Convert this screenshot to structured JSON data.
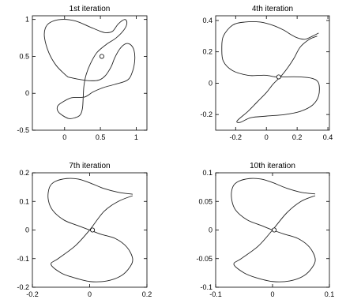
{
  "chart_data": [
    {
      "type": "line",
      "title": "1st iteration",
      "xlabel": "",
      "ylabel": "",
      "xlim": [
        -0.45,
        1.15
      ],
      "ylim": [
        -0.5,
        1.05
      ],
      "xticks": [
        "0",
        "0.5",
        "1"
      ],
      "xtick_values": [
        0,
        0.5,
        1
      ],
      "yticks": [
        "-0.5",
        "0",
        "0.5",
        "1"
      ],
      "ytick_values": [
        -0.5,
        0,
        0.5,
        1
      ],
      "grid": false,
      "series": [
        {
          "points": [
            [
              0.05,
              0.22
            ],
            [
              0.0,
              0.26
            ],
            [
              -0.12,
              0.38
            ],
            [
              -0.22,
              0.55
            ],
            [
              -0.28,
              0.75
            ],
            [
              -0.27,
              0.88
            ],
            [
              -0.2,
              0.96
            ],
            [
              -0.05,
              1.0
            ],
            [
              0.15,
              0.98
            ],
            [
              0.35,
              0.9
            ],
            [
              0.5,
              0.84
            ],
            [
              0.58,
              0.82
            ],
            [
              0.67,
              0.84
            ],
            [
              0.75,
              0.94
            ],
            [
              0.84,
              1.0
            ],
            [
              0.87,
              0.95
            ],
            [
              0.83,
              0.86
            ],
            [
              0.72,
              0.75
            ],
            [
              0.58,
              0.66
            ],
            [
              0.45,
              0.55
            ],
            [
              0.36,
              0.4
            ],
            [
              0.3,
              0.25
            ],
            [
              0.27,
              0.1
            ],
            [
              0.26,
              -0.05
            ],
            [
              0.25,
              -0.2
            ],
            [
              0.22,
              -0.29
            ],
            [
              0.15,
              -0.33
            ],
            [
              0.05,
              -0.34
            ],
            [
              -0.08,
              -0.26
            ],
            [
              -0.1,
              -0.18
            ],
            [
              -0.03,
              -0.12
            ],
            [
              0.1,
              -0.06
            ],
            [
              0.28,
              -0.05
            ],
            [
              0.4,
              0.02
            ],
            [
              0.55,
              0.08
            ],
            [
              0.7,
              0.12
            ],
            [
              0.88,
              0.18
            ],
            [
              0.95,
              0.3
            ],
            [
              0.98,
              0.45
            ],
            [
              0.97,
              0.58
            ],
            [
              0.92,
              0.66
            ],
            [
              0.85,
              0.67
            ],
            [
              0.77,
              0.6
            ],
            [
              0.7,
              0.48
            ],
            [
              0.65,
              0.36
            ],
            [
              0.57,
              0.24
            ],
            [
              0.48,
              0.18
            ],
            [
              0.35,
              0.17
            ],
            [
              0.2,
              0.19
            ],
            [
              0.05,
              0.22
            ]
          ]
        }
      ],
      "marker": [
        0.52,
        0.5
      ]
    },
    {
      "type": "line",
      "title": "4th iteration",
      "xlabel": "",
      "ylabel": "",
      "xlim": [
        -0.33,
        0.41
      ],
      "ylim": [
        -0.3,
        0.43
      ],
      "xticks": [
        "-0.2",
        "0",
        "0.2",
        "0.4"
      ],
      "xtick_values": [
        -0.2,
        0,
        0.2,
        0.4
      ],
      "yticks": [
        "-0.2",
        "0",
        "0.2",
        "0.4"
      ],
      "ytick_values": [
        -0.2,
        0,
        0.2,
        0.4
      ],
      "grid": false,
      "series": [
        {
          "points": [
            [
              0.33,
              0.3
            ],
            [
              0.28,
              0.28
            ],
            [
              0.22,
              0.23
            ],
            [
              0.18,
              0.16
            ],
            [
              0.14,
              0.1
            ],
            [
              0.1,
              0.05
            ],
            [
              0.07,
              0.02
            ],
            [
              0.04,
              -0.01
            ],
            [
              0.0,
              -0.06
            ],
            [
              -0.06,
              -0.12
            ],
            [
              -0.12,
              -0.18
            ],
            [
              -0.19,
              -0.24
            ],
            [
              -0.17,
              -0.25
            ],
            [
              -0.1,
              -0.22
            ],
            [
              0.0,
              -0.21
            ],
            [
              0.12,
              -0.2
            ],
            [
              0.22,
              -0.18
            ],
            [
              0.3,
              -0.14
            ],
            [
              0.34,
              -0.08
            ],
            [
              0.34,
              0.0
            ],
            [
              0.3,
              0.03
            ],
            [
              0.22,
              0.04
            ],
            [
              0.1,
              0.04
            ],
            [
              0.06,
              0.04
            ],
            [
              0.0,
              0.05
            ],
            [
              -0.05,
              0.05
            ],
            [
              -0.12,
              0.05
            ],
            [
              -0.22,
              0.08
            ],
            [
              -0.28,
              0.14
            ],
            [
              -0.29,
              0.22
            ],
            [
              -0.28,
              0.3
            ],
            [
              -0.22,
              0.37
            ],
            [
              -0.14,
              0.39
            ],
            [
              -0.04,
              0.39
            ],
            [
              0.04,
              0.37
            ],
            [
              0.11,
              0.34
            ],
            [
              0.16,
              0.31
            ],
            [
              0.2,
              0.29
            ],
            [
              0.25,
              0.28
            ],
            [
              0.3,
              0.3
            ],
            [
              0.34,
              0.32
            ]
          ]
        }
      ],
      "marker": [
        0.08,
        0.04
      ]
    },
    {
      "type": "line",
      "title": "7th iteration",
      "xlabel": "",
      "ylabel": "",
      "xlim": [
        -0.2,
        0.2
      ],
      "ylim": [
        -0.2,
        0.2
      ],
      "xticks": [
        "-0.2",
        "0",
        "0.2"
      ],
      "xtick_values": [
        -0.2,
        0,
        0.2
      ],
      "yticks": [
        "-0.2",
        "-0.1",
        "0",
        "0.1",
        "0.2"
      ],
      "ytick_values": [
        -0.2,
        -0.1,
        0,
        0.1,
        0.2
      ],
      "grid": false,
      "series": [
        {
          "points": [
            [
              0.15,
              0.12
            ],
            [
              0.1,
              0.1
            ],
            [
              0.05,
              0.065
            ],
            [
              0.0,
              0.0
            ],
            [
              -0.05,
              -0.055
            ],
            [
              -0.11,
              -0.1
            ],
            [
              -0.135,
              -0.12
            ],
            [
              -0.1,
              -0.15
            ],
            [
              -0.06,
              -0.165
            ],
            [
              0.0,
              -0.18
            ],
            [
              0.06,
              -0.178
            ],
            [
              0.11,
              -0.16
            ],
            [
              0.14,
              -0.13
            ],
            [
              0.15,
              -0.1
            ],
            [
              0.13,
              -0.06
            ],
            [
              0.09,
              -0.03
            ],
            [
              0.04,
              -0.015
            ],
            [
              0.0,
              0.0
            ],
            [
              -0.04,
              0.015
            ],
            [
              -0.09,
              0.035
            ],
            [
              -0.13,
              0.07
            ],
            [
              -0.145,
              0.11
            ],
            [
              -0.14,
              0.15
            ],
            [
              -0.12,
              0.17
            ],
            [
              -0.08,
              0.18
            ],
            [
              -0.04,
              0.178
            ],
            [
              0.0,
              0.165
            ],
            [
              0.05,
              0.145
            ],
            [
              0.1,
              0.132
            ],
            [
              0.15,
              0.125
            ]
          ]
        }
      ],
      "marker": [
        0.01,
        0.0
      ]
    },
    {
      "type": "line",
      "title": "10th iteration",
      "xlabel": "",
      "ylabel": "",
      "xlim": [
        -0.1,
        0.1
      ],
      "ylim": [
        -0.1,
        0.1
      ],
      "xticks": [
        "-0.1",
        "0",
        "0.1"
      ],
      "xtick_values": [
        -0.1,
        0,
        0.1
      ],
      "yticks": [
        "-0.1",
        "-0.05",
        "0",
        "0.05",
        "0.1"
      ],
      "ytick_values": [
        -0.1,
        -0.05,
        0,
        0.05,
        0.1
      ],
      "grid": false,
      "series": [
        {
          "points": [
            [
              0.075,
              0.06
            ],
            [
              0.05,
              0.05
            ],
            [
              0.025,
              0.03
            ],
            [
              0.0,
              0.0
            ],
            [
              -0.025,
              -0.028
            ],
            [
              -0.055,
              -0.05
            ],
            [
              -0.068,
              -0.06
            ],
            [
              -0.05,
              -0.075
            ],
            [
              -0.03,
              -0.083
            ],
            [
              0.0,
              -0.09
            ],
            [
              0.03,
              -0.089
            ],
            [
              0.055,
              -0.08
            ],
            [
              0.07,
              -0.065
            ],
            [
              0.075,
              -0.05
            ],
            [
              0.065,
              -0.03
            ],
            [
              0.045,
              -0.015
            ],
            [
              0.02,
              -0.007
            ],
            [
              0.0,
              0.0
            ],
            [
              -0.02,
              0.008
            ],
            [
              -0.045,
              0.018
            ],
            [
              -0.065,
              0.035
            ],
            [
              -0.072,
              0.055
            ],
            [
              -0.07,
              0.075
            ],
            [
              -0.06,
              0.085
            ],
            [
              -0.04,
              0.09
            ],
            [
              -0.02,
              0.089
            ],
            [
              0.0,
              0.083
            ],
            [
              0.025,
              0.073
            ],
            [
              0.05,
              0.066
            ],
            [
              0.075,
              0.063
            ]
          ]
        }
      ],
      "marker": [
        0.003,
        0.0
      ]
    }
  ]
}
